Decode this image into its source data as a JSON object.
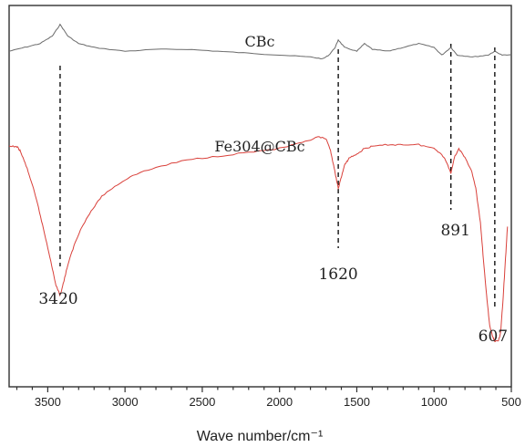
{
  "chart_data": {
    "type": "line",
    "xlabel": "Wave number/cm⁻¹",
    "ylabel": "",
    "xlim": [
      3750,
      500
    ],
    "x_reversed": true,
    "y_axis_visible": false,
    "grid": false,
    "x_ticks": [
      3500,
      3000,
      2500,
      2000,
      1500,
      1000,
      500
    ],
    "x_tick_labels": [
      "3500",
      "3000",
      "2500",
      "2000",
      "1500",
      "1000",
      "500"
    ],
    "series": [
      {
        "name": "CBc",
        "color": "#6b6b6b",
        "points": [
          [
            3750,
            0.88
          ],
          [
            3650,
            0.89
          ],
          [
            3550,
            0.9
          ],
          [
            3470,
            0.92
          ],
          [
            3420,
            0.95
          ],
          [
            3370,
            0.92
          ],
          [
            3300,
            0.9
          ],
          [
            3200,
            0.89
          ],
          [
            3000,
            0.88
          ],
          [
            2800,
            0.885
          ],
          [
            2600,
            0.885
          ],
          [
            2400,
            0.88
          ],
          [
            2200,
            0.875
          ],
          [
            2000,
            0.87
          ],
          [
            1800,
            0.865
          ],
          [
            1720,
            0.86
          ],
          [
            1680,
            0.87
          ],
          [
            1640,
            0.89
          ],
          [
            1620,
            0.91
          ],
          [
            1580,
            0.89
          ],
          [
            1500,
            0.88
          ],
          [
            1450,
            0.9
          ],
          [
            1400,
            0.885
          ],
          [
            1300,
            0.88
          ],
          [
            1200,
            0.89
          ],
          [
            1100,
            0.9
          ],
          [
            1000,
            0.89
          ],
          [
            950,
            0.87
          ],
          [
            891,
            0.89
          ],
          [
            850,
            0.87
          ],
          [
            750,
            0.865
          ],
          [
            650,
            0.87
          ],
          [
            607,
            0.88
          ],
          [
            560,
            0.87
          ],
          [
            500,
            0.87
          ]
        ]
      },
      {
        "name": "Fe304@CBc",
        "color": "#d9403a",
        "points": [
          [
            3750,
            0.63
          ],
          [
            3700,
            0.63
          ],
          [
            3680,
            0.62
          ],
          [
            3640,
            0.58
          ],
          [
            3600,
            0.53
          ],
          [
            3560,
            0.47
          ],
          [
            3520,
            0.4
          ],
          [
            3480,
            0.33
          ],
          [
            3450,
            0.27
          ],
          [
            3430,
            0.25
          ],
          [
            3420,
            0.24
          ],
          [
            3400,
            0.27
          ],
          [
            3370,
            0.32
          ],
          [
            3330,
            0.37
          ],
          [
            3280,
            0.42
          ],
          [
            3220,
            0.46
          ],
          [
            3150,
            0.5
          ],
          [
            3050,
            0.53
          ],
          [
            2950,
            0.555
          ],
          [
            2800,
            0.575
          ],
          [
            2600,
            0.595
          ],
          [
            2400,
            0.605
          ],
          [
            2200,
            0.615
          ],
          [
            2000,
            0.625
          ],
          [
            1850,
            0.64
          ],
          [
            1750,
            0.655
          ],
          [
            1700,
            0.65
          ],
          [
            1670,
            0.62
          ],
          [
            1650,
            0.58
          ],
          [
            1630,
            0.54
          ],
          [
            1620,
            0.52
          ],
          [
            1600,
            0.55
          ],
          [
            1580,
            0.58
          ],
          [
            1550,
            0.6
          ],
          [
            1500,
            0.61
          ],
          [
            1450,
            0.625
          ],
          [
            1400,
            0.63
          ],
          [
            1300,
            0.635
          ],
          [
            1200,
            0.635
          ],
          [
            1100,
            0.635
          ],
          [
            1000,
            0.625
          ],
          [
            950,
            0.61
          ],
          [
            920,
            0.59
          ],
          [
            891,
            0.56
          ],
          [
            870,
            0.6
          ],
          [
            840,
            0.625
          ],
          [
            800,
            0.6
          ],
          [
            760,
            0.57
          ],
          [
            730,
            0.52
          ],
          [
            700,
            0.43
          ],
          [
            680,
            0.33
          ],
          [
            660,
            0.24
          ],
          [
            640,
            0.16
          ],
          [
            620,
            0.13
          ],
          [
            607,
            0.12
          ],
          [
            585,
            0.12
          ],
          [
            570,
            0.14
          ],
          [
            555,
            0.22
          ],
          [
            540,
            0.32
          ],
          [
            525,
            0.42
          ]
        ]
      }
    ],
    "annotations": [
      {
        "label": "3420",
        "x": 3420
      },
      {
        "label": "1620",
        "x": 1620
      },
      {
        "label": "891",
        "x": 891
      },
      {
        "label": "607",
        "x": 607
      }
    ]
  }
}
